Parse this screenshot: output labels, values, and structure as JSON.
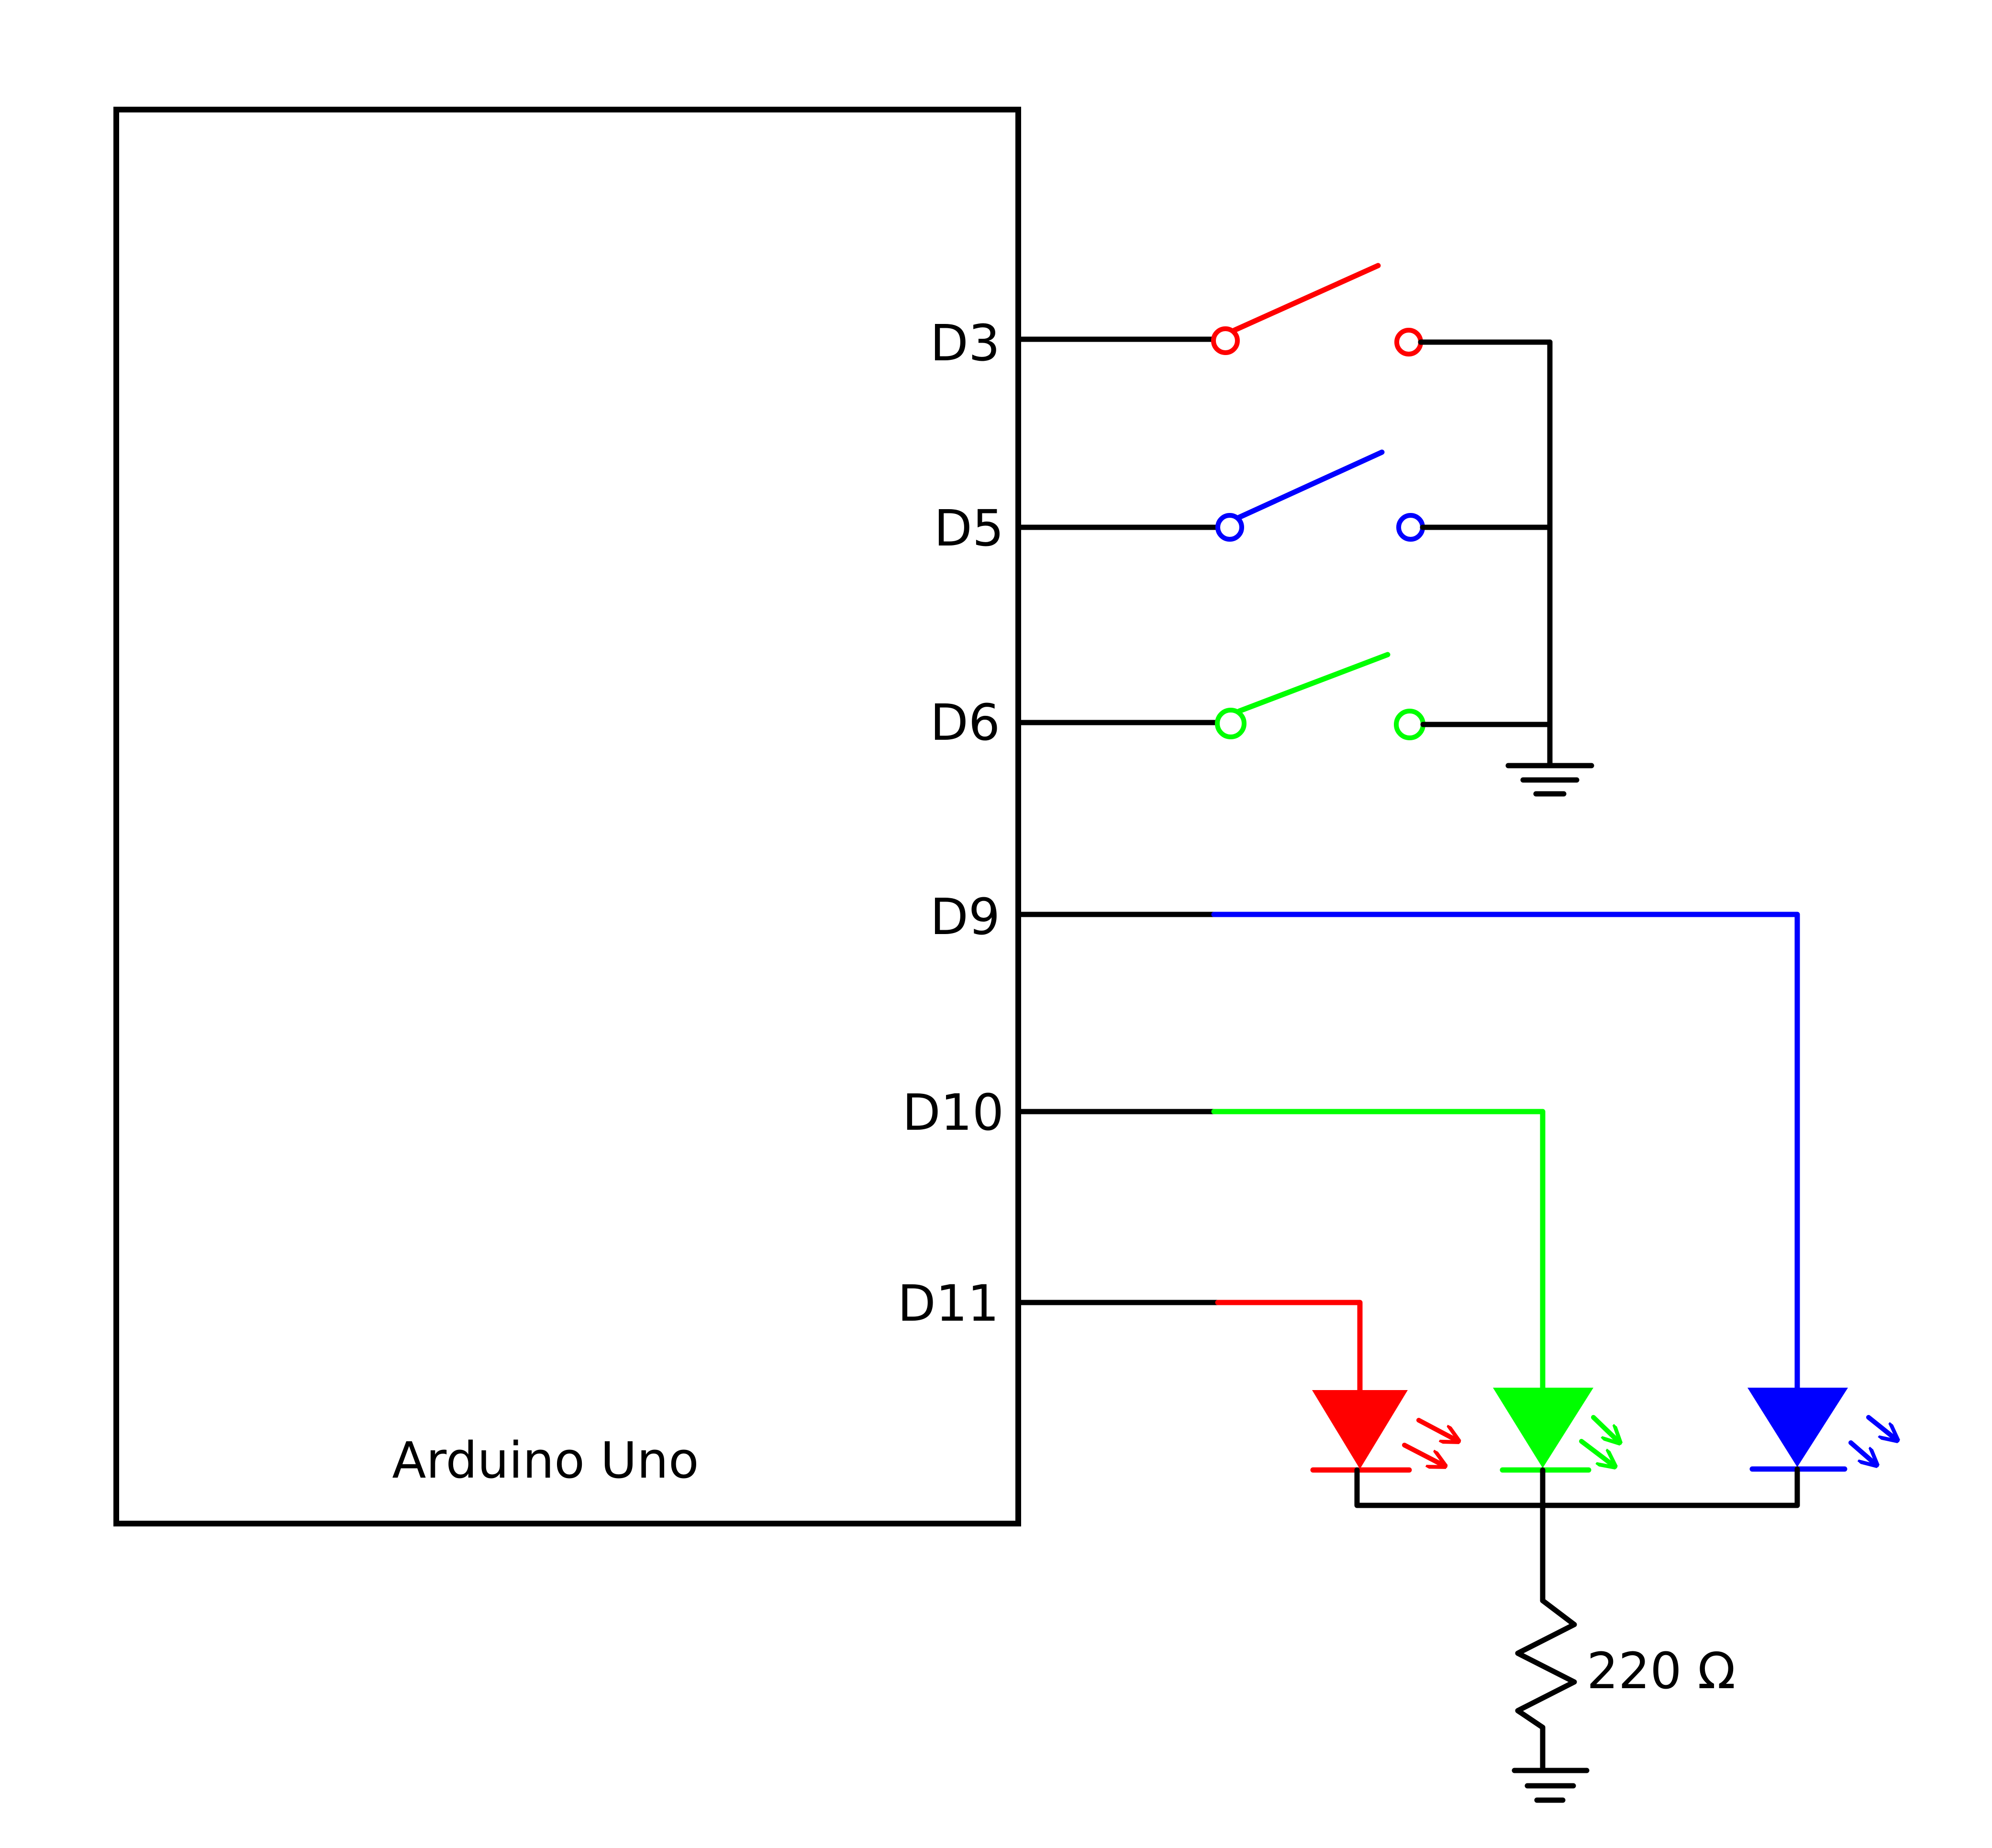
{
  "board": {
    "label": "Arduino Uno"
  },
  "pins": {
    "d3": "D3",
    "d5": "D5",
    "d6": "D6",
    "d9": "D9",
    "d10": "D10",
    "d11": "D11"
  },
  "resistor": {
    "label": "220 Ω"
  },
  "colors": {
    "wire": "#000000",
    "red": "#ff0000",
    "green": "#00ff00",
    "blue": "#0000ff",
    "background": "#ffffff"
  },
  "components": {
    "switches": [
      {
        "pin": "D3",
        "color": "red",
        "to": "ground"
      },
      {
        "pin": "D5",
        "color": "blue",
        "to": "ground"
      },
      {
        "pin": "D6",
        "color": "green",
        "to": "ground"
      }
    ],
    "leds": [
      {
        "pin": "D11",
        "color": "red"
      },
      {
        "pin": "D10",
        "color": "green"
      },
      {
        "pin": "D9",
        "color": "blue"
      }
    ]
  }
}
